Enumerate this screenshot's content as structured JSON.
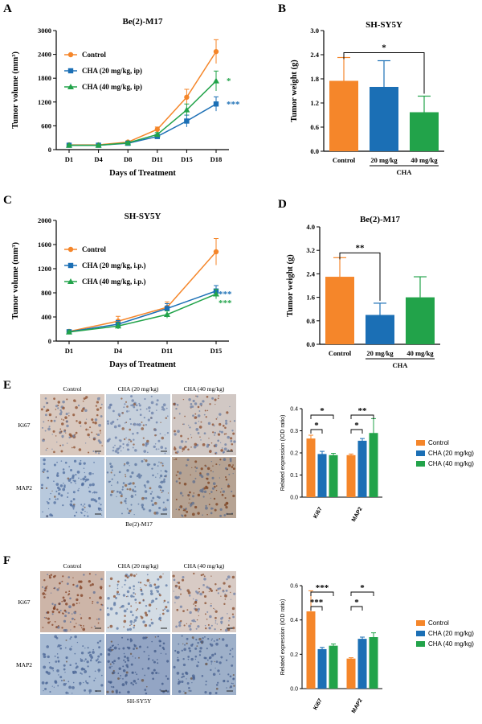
{
  "panel_letters": [
    "A",
    "B",
    "C",
    "D",
    "E",
    "F"
  ],
  "colors": {
    "control": "#f5862a",
    "cha20": "#1b6fb5",
    "cha40": "#22a34a"
  },
  "chart_data": [
    {
      "panel": "A",
      "type": "line",
      "title": "Be(2)-M17",
      "xlabel": "Days of Treatment",
      "ylabel": "Tumor volume (mm³)",
      "categories": [
        "D1",
        "D4",
        "D8",
        "D11",
        "D15",
        "D18"
      ],
      "yticks": [
        "0",
        "600",
        "1200",
        "1800",
        "2400",
        "3000"
      ],
      "ylim": [
        0,
        3000
      ],
      "series": [
        {
          "name": "Control",
          "values": [
            120,
            120,
            190,
            510,
            1320,
            2470
          ],
          "errors": [
            15,
            15,
            30,
            60,
            200,
            300
          ]
        },
        {
          "name": "CHA (20 mg/kg, ip)",
          "values": [
            110,
            110,
            160,
            330,
            720,
            1150
          ],
          "errors": [
            15,
            15,
            25,
            50,
            150,
            180
          ]
        },
        {
          "name": "CHA (40 mg/kg, ip)",
          "values": [
            110,
            110,
            170,
            380,
            1000,
            1730
          ],
          "errors": [
            15,
            15,
            25,
            50,
            150,
            250
          ]
        }
      ],
      "annotations": [
        "*",
        "***"
      ],
      "legend": "top-left"
    },
    {
      "panel": "B",
      "type": "bar",
      "title": "SH-SY5Y",
      "ylabel": "Tumor weight (g)",
      "categories": [
        "Control",
        "20 mg/kg",
        "40 mg/kg"
      ],
      "group_label": "CHA",
      "yticks": [
        "0.0",
        "0.6",
        "1.2",
        "1.8",
        "2.4",
        "3.0"
      ],
      "ylim": [
        0,
        3
      ],
      "values": [
        1.75,
        1.6,
        0.97
      ],
      "errors": [
        0.58,
        0.65,
        0.4
      ],
      "significance": [
        {
          "from": "Control",
          "to": "40 mg/kg",
          "label": "*"
        }
      ]
    },
    {
      "panel": "C",
      "type": "line",
      "title": "SH-SY5Y",
      "xlabel": "Days of Treatment",
      "ylabel": "Tumor volume (mm³)",
      "categories": [
        "D1",
        "D4",
        "D11",
        "D15"
      ],
      "yticks": [
        "0",
        "400",
        "800",
        "1200",
        "1600",
        "2000"
      ],
      "ylim": [
        0,
        2000
      ],
      "series": [
        {
          "name": "Control",
          "values": [
            160,
            330,
            560,
            1480
          ],
          "errors": [
            20,
            80,
            90,
            220
          ]
        },
        {
          "name": "CHA (20 mg/kg, i.p.)",
          "values": [
            155,
            280,
            540,
            830
          ],
          "errors": [
            20,
            60,
            80,
            90
          ]
        },
        {
          "name": "CHA (40 mg/kg, i.p.)",
          "values": [
            150,
            250,
            440,
            780
          ],
          "errors": [
            20,
            50,
            60,
            80
          ]
        }
      ],
      "annotations": [
        "***",
        "***"
      ],
      "legend": "top-left"
    },
    {
      "panel": "D",
      "type": "bar",
      "title": "Be(2)-M17",
      "ylabel": "Tumor weight (g)",
      "categories": [
        "Control",
        "20 mg/kg",
        "40 mg/kg"
      ],
      "group_label": "CHA",
      "yticks": [
        "0.0",
        "0.8",
        "1.6",
        "2.4",
        "3.2",
        "4.0"
      ],
      "ylim": [
        0,
        4
      ],
      "values": [
        2.3,
        1.0,
        1.6
      ],
      "errors": [
        0.65,
        0.4,
        0.7
      ],
      "significance": [
        {
          "from": "Control",
          "to": "20 mg/kg",
          "label": "**"
        }
      ]
    },
    {
      "panel": "E",
      "type": "bar",
      "ylabel": "Related expression (IOD ratio)",
      "categories": [
        "Ki67",
        "MAP2"
      ],
      "yticks": [
        "0.0",
        "0.1",
        "0.2",
        "0.3",
        "0.4"
      ],
      "ylim": [
        0,
        0.4
      ],
      "series": [
        {
          "name": "Control",
          "values": [
            0.265,
            0.19
          ],
          "errors": [
            0.015,
            0.005
          ]
        },
        {
          "name": "CHA (20 mg/kg)",
          "values": [
            0.195,
            0.255
          ],
          "errors": [
            0.012,
            0.01
          ]
        },
        {
          "name": "CHA (40 mg/kg)",
          "values": [
            0.19,
            0.29
          ],
          "errors": [
            0.008,
            0.065
          ]
        }
      ],
      "significance": [
        {
          "category": "Ki67",
          "from": "Control",
          "to": "CHA (20 mg/kg)",
          "label": "*"
        },
        {
          "category": "Ki67",
          "from": "Control",
          "to": "CHA (40 mg/kg)",
          "label": "*"
        },
        {
          "category": "MAP2",
          "from": "Control",
          "to": "CHA (20 mg/kg)",
          "label": "*"
        },
        {
          "category": "MAP2",
          "from": "Control",
          "to": "CHA (40 mg/kg)",
          "label": "**"
        }
      ],
      "legend": "right"
    },
    {
      "panel": "F",
      "type": "bar",
      "ylabel": "Related expression (IOD ratio)",
      "categories": [
        "Ki67",
        "MAP2"
      ],
      "yticks": [
        "0.0",
        "0.2",
        "0.4",
        "0.6"
      ],
      "ylim": [
        0,
        0.6
      ],
      "series": [
        {
          "name": "Control",
          "values": [
            0.45,
            0.175
          ],
          "errors": [
            0.12,
            0.005
          ]
        },
        {
          "name": "CHA (20 mg/kg)",
          "values": [
            0.23,
            0.29
          ],
          "errors": [
            0.01,
            0.01
          ]
        },
        {
          "name": "CHA (40 mg/kg)",
          "values": [
            0.25,
            0.3
          ],
          "errors": [
            0.01,
            0.025
          ]
        }
      ],
      "significance": [
        {
          "category": "Ki67",
          "from": "Control",
          "to": "CHA (20 mg/kg)",
          "label": "***"
        },
        {
          "category": "Ki67",
          "from": "Control",
          "to": "CHA (40 mg/kg)",
          "label": "***"
        },
        {
          "category": "MAP2",
          "from": "Control",
          "to": "CHA (20 mg/kg)",
          "label": "*"
        },
        {
          "category": "MAP2",
          "from": "Control",
          "to": "CHA (40 mg/kg)",
          "label": "*"
        }
      ],
      "legend": "right"
    }
  ],
  "histology": [
    {
      "panel": "E",
      "columns": [
        "Control",
        "CHA (20 mg/kg)",
        "CHA (40 mg/kg)"
      ],
      "rows": [
        "Ki67",
        "MAP2"
      ],
      "caption": "Be(2)-M17"
    },
    {
      "panel": "F",
      "columns": [
        "Control",
        "CHA (20 mg/kg)",
        "CHA (40 mg/kg)"
      ],
      "rows": [
        "Ki67",
        "MAP2"
      ],
      "caption": "SH-SY5Y"
    }
  ]
}
